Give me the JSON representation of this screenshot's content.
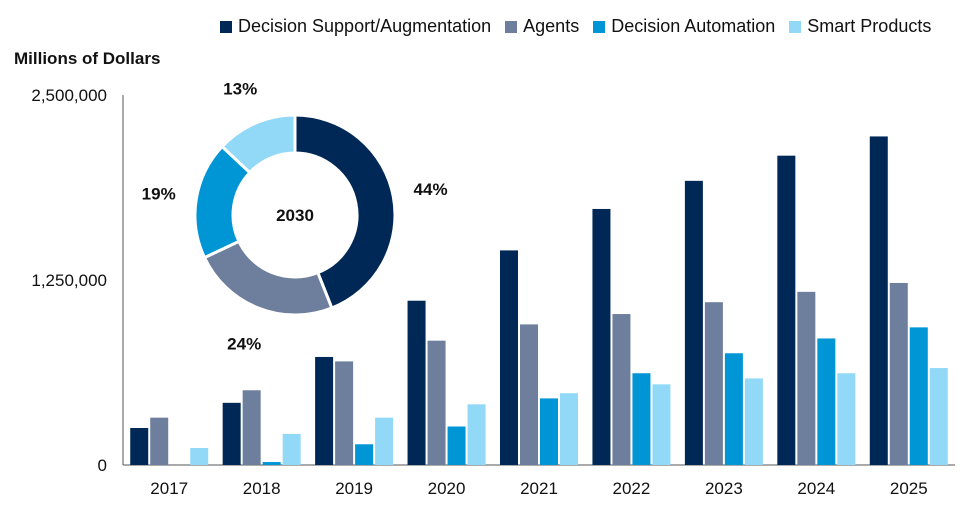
{
  "chart_data": [
    {
      "type": "bar",
      "ylabel": "Millions of Dollars",
      "ylim": [
        0,
        2500000
      ],
      "yticks": [
        0,
        1250000,
        2500000
      ],
      "ytick_labels": [
        "0",
        "1,250,000",
        "2,500,000"
      ],
      "categories": [
        "2017",
        "2018",
        "2019",
        "2020",
        "2021",
        "2022",
        "2023",
        "2024",
        "2025"
      ],
      "legend_position": "top",
      "series": [
        {
          "name": "Decision Support/Augmentation",
          "color": "#002856",
          "values": [
            250000,
            420000,
            730000,
            1110000,
            1450000,
            1730000,
            1920000,
            2090000,
            2220000
          ]
        },
        {
          "name": "Agents",
          "color": "#6E7F9E",
          "values": [
            320000,
            505000,
            700000,
            840000,
            950000,
            1020000,
            1100000,
            1170000,
            1230000
          ]
        },
        {
          "name": "Decision Automation",
          "color": "#0096D6",
          "values": [
            0,
            20000,
            140000,
            260000,
            450000,
            620000,
            755000,
            855000,
            930000
          ]
        },
        {
          "name": "Smart Products",
          "color": "#92D9F8",
          "values": [
            115000,
            210000,
            320000,
            410000,
            485000,
            545000,
            585000,
            620000,
            655000
          ]
        }
      ]
    },
    {
      "type": "pie",
      "subtype": "donut",
      "center_label": "2030",
      "slices": [
        {
          "name": "Decision Support/Augmentation",
          "value": 44,
          "label": "44%",
          "color": "#002856"
        },
        {
          "name": "Agents",
          "value": 24,
          "label": "24%",
          "color": "#6E7F9E"
        },
        {
          "name": "Decision Automation",
          "value": 19,
          "label": "19%",
          "color": "#0096D6"
        },
        {
          "name": "Smart Products",
          "value": 13,
          "label": "13%",
          "color": "#92D9F8"
        }
      ]
    }
  ]
}
